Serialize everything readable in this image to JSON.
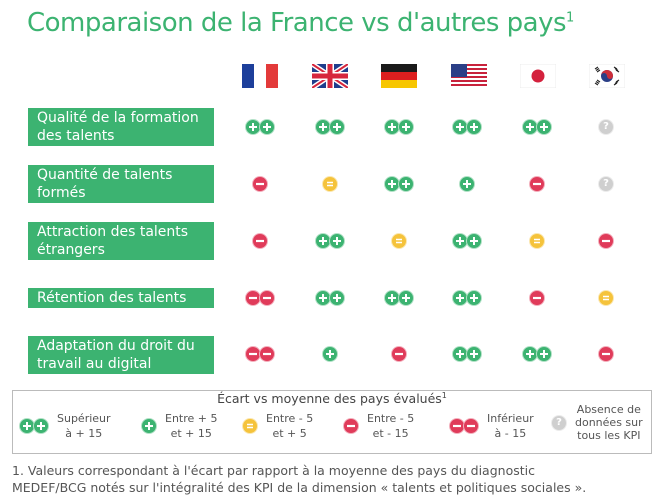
{
  "title": "Comparaison de la France vs d'autres pays",
  "title_sup": "1",
  "countries": [
    "France",
    "United Kingdom",
    "Germany",
    "United States",
    "Japan",
    "South Korea"
  ],
  "rows": [
    {
      "label": "Qualité de la formation des talents",
      "cells": [
        "pp",
        "pp",
        "pp",
        "pp",
        "pp",
        "q"
      ]
    },
    {
      "label": "Quantité de talents formés",
      "cells": [
        "m",
        "z",
        "pp",
        "p",
        "m",
        "q"
      ]
    },
    {
      "label": "Attraction des talents étrangers",
      "cells": [
        "m",
        "pp",
        "z",
        "pp",
        "z",
        "m"
      ]
    },
    {
      "label": "Rétention des talents",
      "cells": [
        "mm",
        "pp",
        "pp",
        "pp",
        "m",
        "z"
      ]
    },
    {
      "label": "Adaptation du droit du travail au digital",
      "cells": [
        "mm",
        "p",
        "m",
        "pp",
        "pp",
        "m"
      ]
    }
  ],
  "legend": {
    "title": "Écart vs moyenne des pays évalués",
    "title_sup": "1",
    "items": [
      {
        "symbol": "pp",
        "line1": "Supérieur",
        "line2": "à + 15"
      },
      {
        "symbol": "p",
        "line1": "Entre + 5",
        "line2": "et + 15"
      },
      {
        "symbol": "z",
        "line1": "Entre - 5",
        "line2": "et + 5"
      },
      {
        "symbol": "m",
        "line1": "Entre - 5",
        "line2": "et - 15"
      },
      {
        "symbol": "mm",
        "line1": "Inférieur",
        "line2": "à  - 15"
      },
      {
        "symbol": "q",
        "line1": "Absence de",
        "line2": "données sur",
        "line3": "tous les KPI"
      }
    ]
  },
  "footnote": {
    "line1": "1. Valeurs correspondant à l'écart par rapport à la moyenne des pays du diagnostic",
    "line2": "MEDEF/BCG notés sur l'intégralité des KPI de la dimension « talents et politiques sociales »."
  },
  "colors": {
    "green": "#3cb371",
    "red": "#e03b5a",
    "yellow": "#f5c33b",
    "grey": "#cfcfcf"
  },
  "icons": {
    "pp": "double-plus-icon",
    "p": "plus-icon",
    "z": "equal-icon",
    "m": "minus-icon",
    "mm": "double-minus-icon",
    "q": "question-icon"
  }
}
